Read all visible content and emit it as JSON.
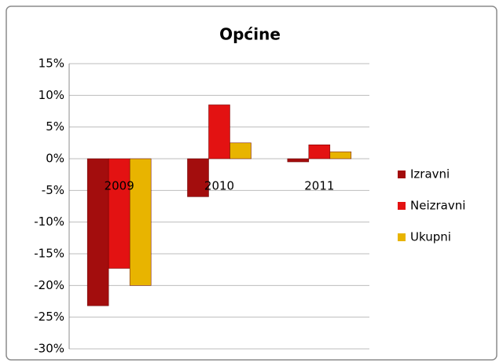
{
  "chart_data": {
    "type": "bar",
    "title": "Općine",
    "categories": [
      "2009",
      "2010",
      "2011"
    ],
    "series": [
      {
        "name": "Izravni",
        "color": "#a30d0d",
        "values": [
          -23.2,
          -6,
          -0.5
        ]
      },
      {
        "name": "Neizravni",
        "color": "#e31212",
        "values": [
          -17.3,
          8.5,
          2.2
        ]
      },
      {
        "name": "Ukupni",
        "color": "#e8b400",
        "values": [
          -20,
          2.5,
          1.1
        ]
      }
    ],
    "ylim": [
      -30,
      15
    ],
    "yticks": [
      {
        "value": -30,
        "label": "-30%"
      },
      {
        "value": -25,
        "label": "-25%"
      },
      {
        "value": -20,
        "label": "-20%"
      },
      {
        "value": -15,
        "label": "-15%"
      },
      {
        "value": -10,
        "label": "-10%"
      },
      {
        "value": -5,
        "label": "-5%"
      },
      {
        "value": 0,
        "label": "0%"
      },
      {
        "value": 5,
        "label": "5%"
      },
      {
        "value": 10,
        "label": "10%"
      },
      {
        "value": 15,
        "label": "15%"
      }
    ],
    "grid": true,
    "legend": "right"
  }
}
